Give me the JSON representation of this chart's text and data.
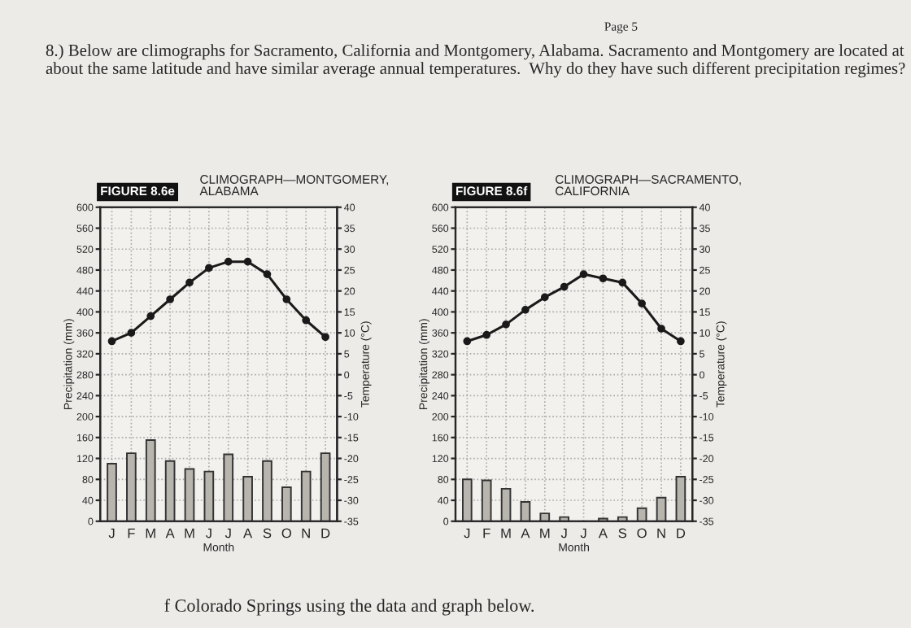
{
  "chart_data": [
    {
      "type": "bar",
      "subtitle": "FIGURE 8.6e",
      "title": "CLIMOGRAPH—MONTGOMERY,\nALABAMA",
      "xlabel": "Month",
      "ylabel": "Precipitation (mm)",
      "y2label": "Temperature (°C)",
      "categories": [
        "J",
        "F",
        "M",
        "A",
        "M",
        "J",
        "J",
        "A",
        "S",
        "O",
        "N",
        "D"
      ],
      "series": [
        {
          "color": "#b8b4ae",
          "values": [
            110,
            130,
            155,
            115,
            100,
            95,
            128,
            85,
            115,
            65,
            95,
            130
          ]
        },
        {
          "type": "line",
          "axis": "y2",
          "color": "#1a1a1a",
          "values": [
            8,
            10,
            14,
            18,
            22,
            25.5,
            27,
            27,
            24,
            18,
            13,
            9
          ]
        }
      ],
      "ylim": [
        0,
        600
      ],
      "yticks": [
        0,
        40,
        80,
        120,
        160,
        200,
        240,
        280,
        320,
        360,
        400,
        440,
        480,
        520,
        560,
        600
      ],
      "y2lim": [
        -35,
        40
      ],
      "y2ticks": [
        -35,
        -30,
        -25,
        -20,
        -15,
        -10,
        -5,
        0,
        5,
        10,
        15,
        20,
        25,
        30,
        35,
        40
      ],
      "grid": true,
      "marker": "circle",
      "line_style": "solid",
      "annotations": [
        "Page 5",
        "8.) Below are climographs for Sacramento, California and Montgomery, Alabama. Sacramento and Montgomery are located at about the same latitude and have similar average annual temperatures.  Why do they have such different precipitation regimes?",
        "f Colorado Springs using the data and graph below."
      ]
    },
    {
      "type": "bar",
      "subtitle": "FIGURE 8.6f",
      "title": "CLIMOGRAPH—SACRAMENTO,\nCALIFORNIA",
      "xlabel": "Month",
      "ylabel": "Precipitation (mm)",
      "y2label": "Temperature (°C)",
      "categories": [
        "J",
        "F",
        "M",
        "A",
        "M",
        "J",
        "J",
        "A",
        "S",
        "O",
        "N",
        "D"
      ],
      "series": [
        {
          "color": "#b8b4ae",
          "values": [
            80,
            78,
            62,
            37,
            15,
            8,
            null,
            5,
            8,
            25,
            45,
            85
          ]
        },
        {
          "type": "line",
          "axis": "y2",
          "color": "#1a1a1a",
          "values": [
            8,
            9.5,
            12,
            15.5,
            18.5,
            21,
            24,
            23,
            22,
            17,
            11,
            8
          ]
        }
      ],
      "ylim": [
        0,
        600
      ],
      "yticks": [
        0,
        40,
        80,
        120,
        160,
        200,
        240,
        280,
        320,
        360,
        400,
        440,
        480,
        520,
        560,
        600
      ],
      "y2lim": [
        -35,
        40
      ],
      "y2ticks": [
        -35,
        -30,
        -25,
        -20,
        -15,
        -10,
        -5,
        0,
        5,
        10,
        15,
        20,
        25,
        30,
        35,
        40
      ],
      "grid": true,
      "marker": "circle",
      "line_style": "solid"
    }
  ]
}
